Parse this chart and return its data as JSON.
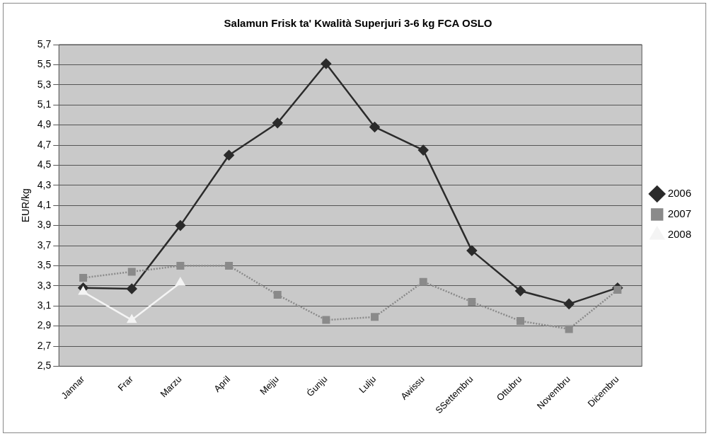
{
  "chart_data": {
    "type": "line",
    "title": "Salamun Frisk ta' Kwalità Superjuri 3-6 kg FCA OSLO",
    "ylabel": "EUR/kg",
    "categories": [
      "Jannar",
      "Frar",
      "Marzu",
      "April",
      "Mejju",
      "Ġunju",
      "Lulju",
      "Awissu",
      "SSettembru",
      "Ottubru",
      "Novembru",
      "Diċembru"
    ],
    "series": [
      {
        "name": "2006",
        "color": "#2b2b2b",
        "marker": "diamond",
        "line_style": "solid",
        "values": [
          3.28,
          3.27,
          3.9,
          4.6,
          4.92,
          5.51,
          4.88,
          4.65,
          3.65,
          3.25,
          3.12,
          3.28
        ]
      },
      {
        "name": "2007",
        "color": "#8a8a8a",
        "marker": "square",
        "line_style": "dotted",
        "values": [
          3.38,
          3.44,
          3.5,
          3.5,
          3.21,
          2.96,
          2.99,
          3.34,
          3.14,
          2.95,
          2.87,
          3.26
        ]
      },
      {
        "name": "2008",
        "color": "#f4f4f4",
        "marker": "triangle",
        "line_style": "solid",
        "values": [
          3.24,
          2.96,
          3.33,
          null,
          null,
          null,
          null,
          null,
          null,
          null,
          null,
          null
        ]
      }
    ],
    "ylim": [
      2.5,
      5.7
    ],
    "yticks": [
      {
        "value": 2.5,
        "label": "2,5"
      },
      {
        "value": 2.7,
        "label": "2,7"
      },
      {
        "value": 2.9,
        "label": "2,9"
      },
      {
        "value": 3.1,
        "label": "3,1"
      },
      {
        "value": 3.3,
        "label": "3,3"
      },
      {
        "value": 3.5,
        "label": "3,5"
      },
      {
        "value": 3.7,
        "label": "3,7"
      },
      {
        "value": 3.9,
        "label": "3,9"
      },
      {
        "value": 4.1,
        "label": "4,1"
      },
      {
        "value": 4.3,
        "label": "4,3"
      },
      {
        "value": 4.5,
        "label": "4,5"
      },
      {
        "value": 4.7,
        "label": "4,7"
      },
      {
        "value": 4.9,
        "label": "4,9"
      },
      {
        "value": 5.1,
        "label": "5,1"
      },
      {
        "value": 5.3,
        "label": "5,3"
      },
      {
        "value": 5.5,
        "label": "5,5"
      },
      {
        "value": 5.7,
        "label": "5,7"
      }
    ],
    "grid": "y",
    "legend": "right"
  }
}
